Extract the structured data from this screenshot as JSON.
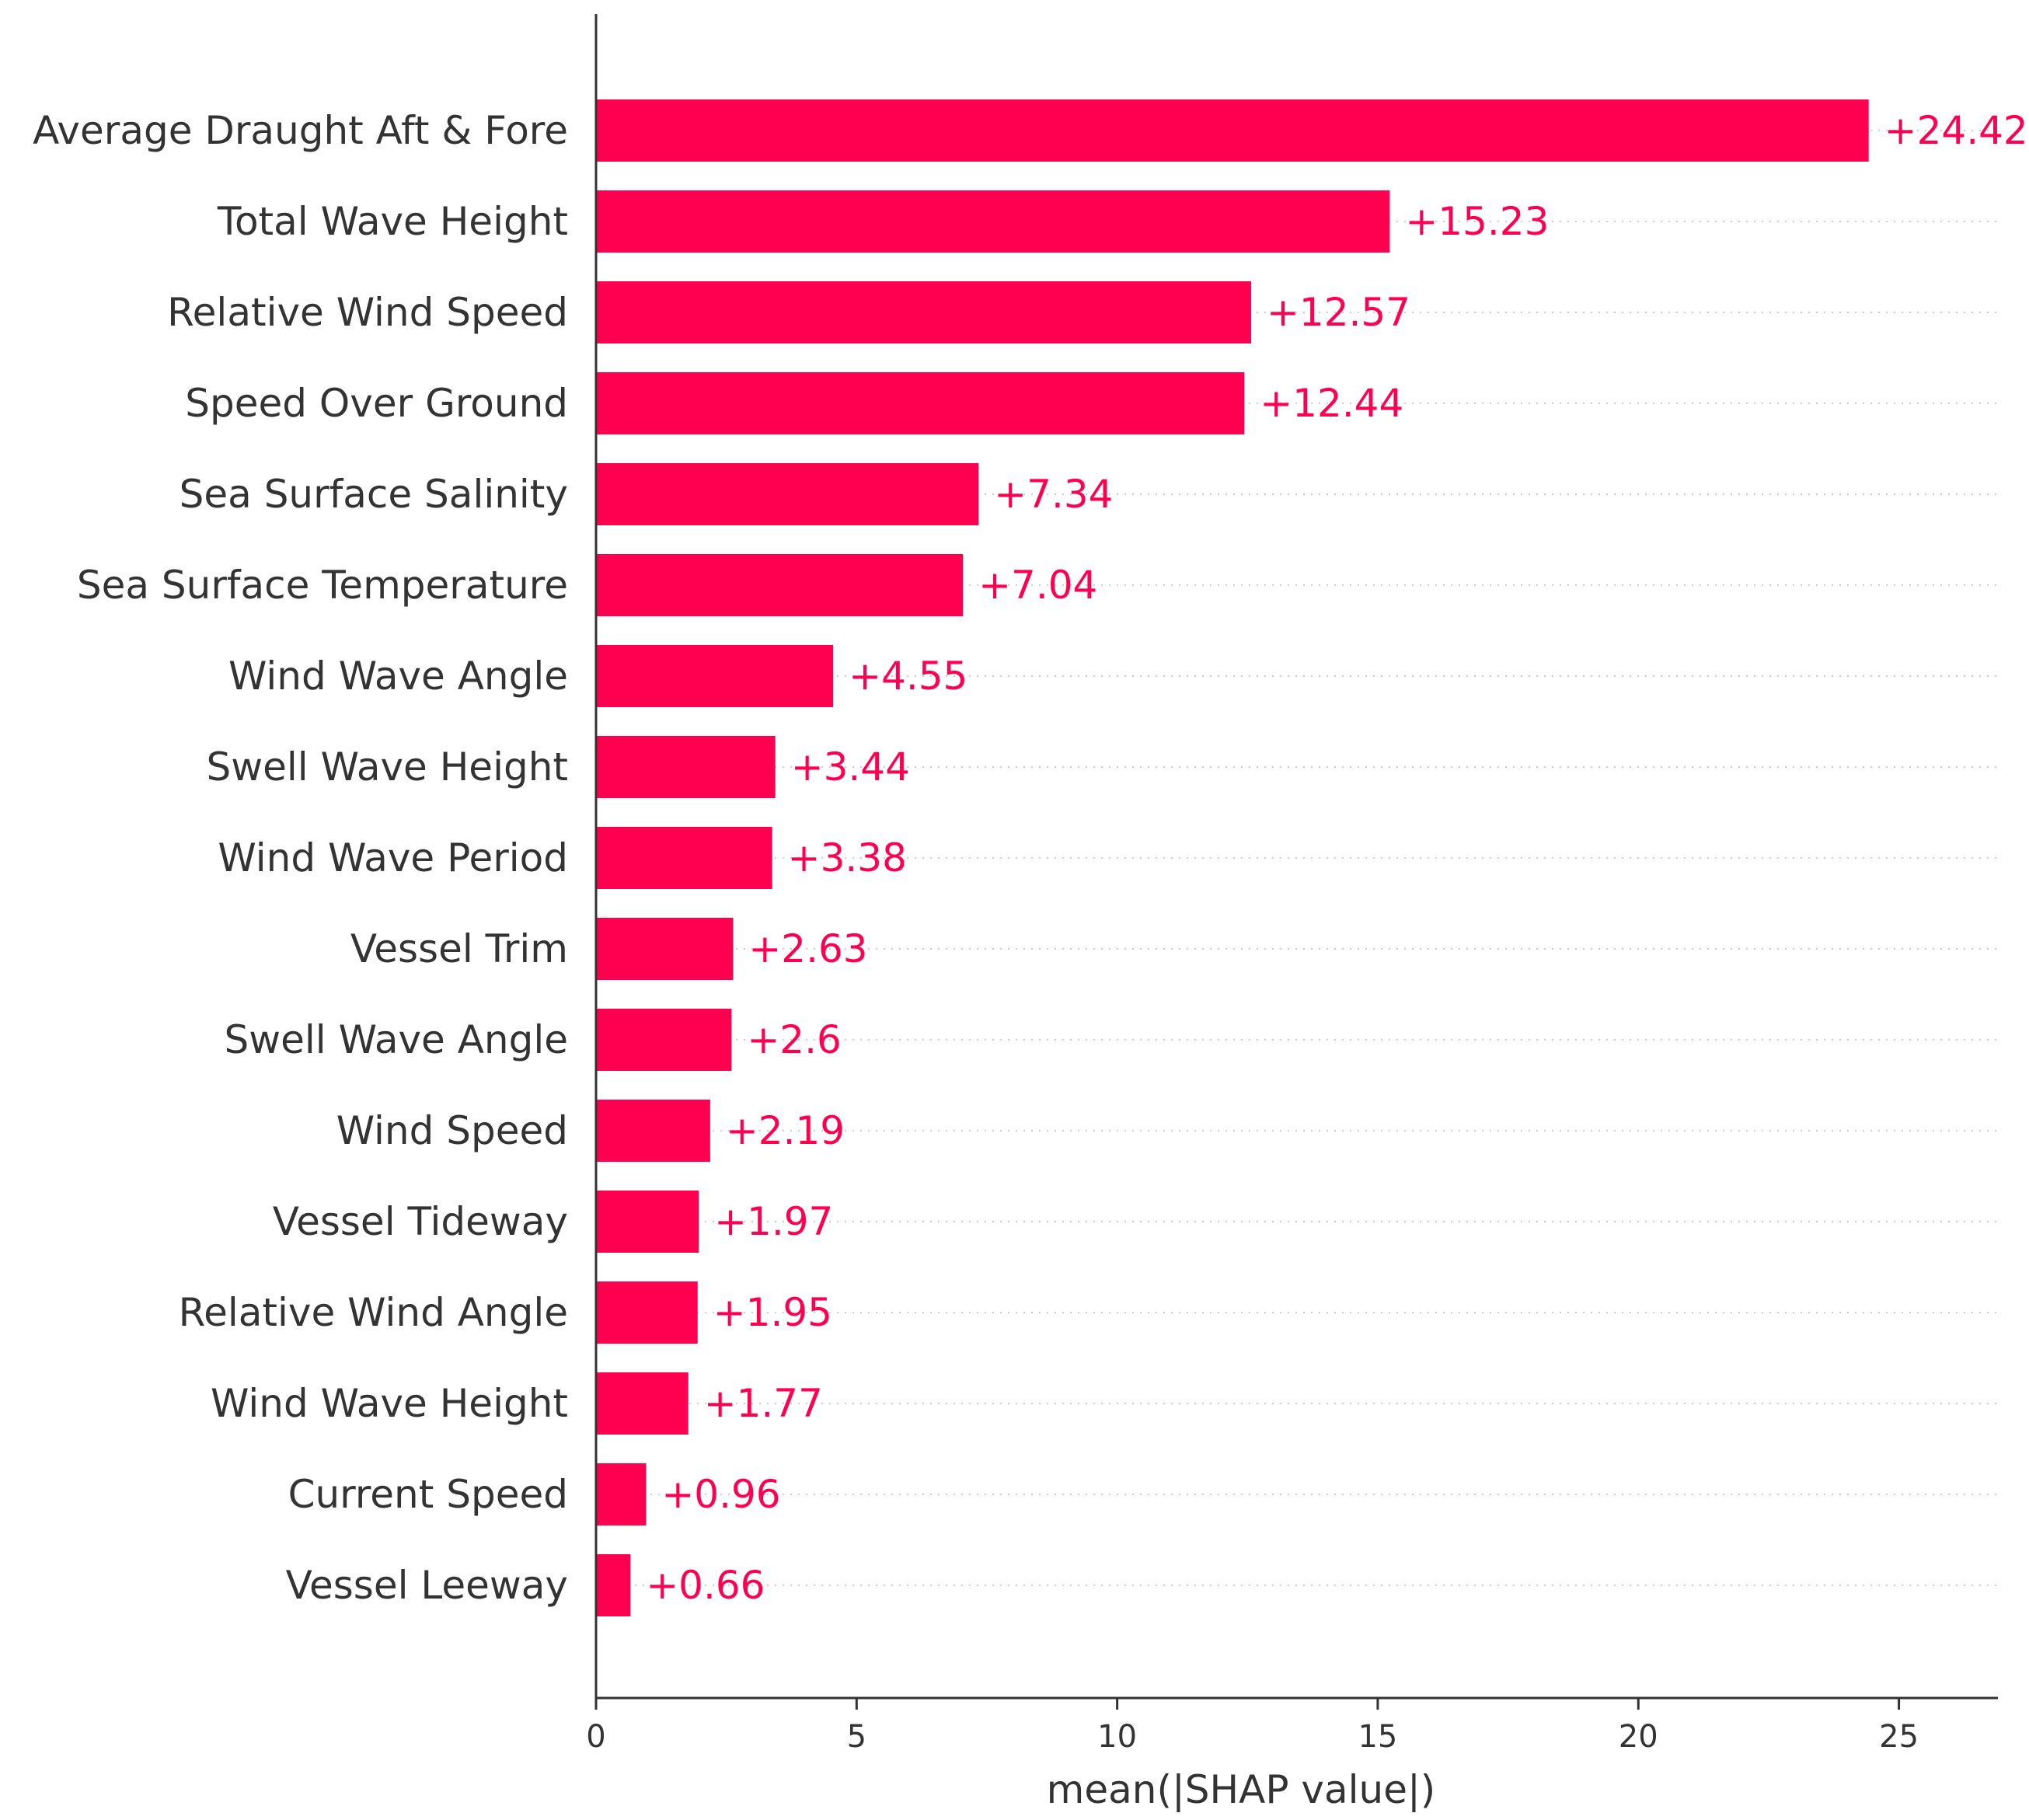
{
  "chart_data": {
    "type": "bar",
    "orientation": "horizontal",
    "title": "",
    "xlabel": "mean(|SHAP value|)",
    "ylabel": "",
    "xlim": [
      0,
      26.9
    ],
    "xticks": [
      0,
      5,
      10,
      15,
      20,
      25
    ],
    "grid": "horizontal dotted lines per category",
    "bar_color": "#ff0051",
    "label_color": "#ff0051",
    "categories": [
      "Average Draught Aft & Fore",
      "Total Wave Height",
      "Relative Wind Speed",
      "Speed Over Ground",
      "Sea Surface Salinity",
      "Sea Surface Temperature",
      "Wind Wave Angle",
      "Swell Wave Height",
      "Wind Wave Period",
      "Vessel Trim",
      "Swell Wave Angle",
      "Wind Speed",
      "Vessel Tideway",
      "Relative Wind Angle",
      "Wind Wave Height",
      "Current Speed",
      "Vessel Leeway"
    ],
    "values": [
      24.42,
      15.23,
      12.57,
      12.44,
      7.34,
      7.04,
      4.55,
      3.44,
      3.38,
      2.63,
      2.6,
      2.19,
      1.97,
      1.95,
      1.77,
      0.96,
      0.66
    ],
    "value_labels": [
      "+24.42",
      "+15.23",
      "+12.57",
      "+12.44",
      "+7.34",
      "+7.04",
      "+4.55",
      "+3.44",
      "+3.38",
      "+2.63",
      "+2.6",
      "+2.19",
      "+1.97",
      "+1.95",
      "+1.77",
      "+0.96",
      "+0.66"
    ]
  }
}
